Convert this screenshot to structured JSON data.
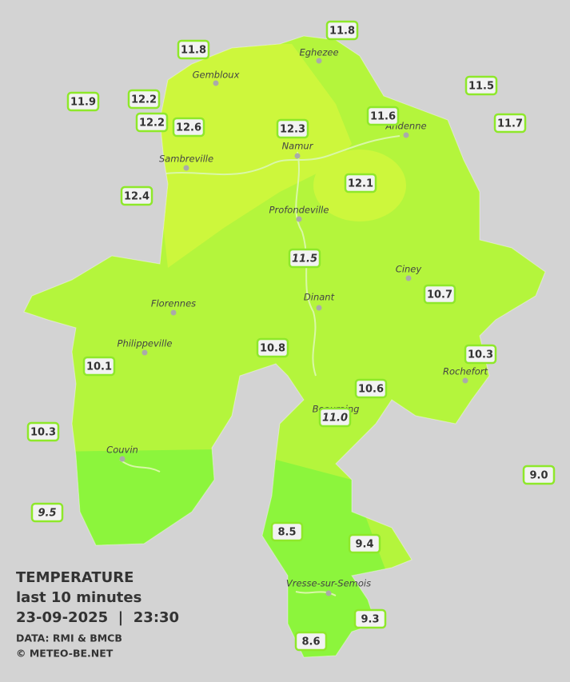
{
  "stations": [
    {
      "label": "11.8"
    },
    {
      "label": "11.8"
    },
    {
      "label": "11.5"
    },
    {
      "label": "11.9"
    },
    {
      "label": "12.2"
    },
    {
      "label": "12.2"
    },
    {
      "label": "12.6"
    },
    {
      "label": "12.3"
    },
    {
      "label": "11.6"
    },
    {
      "label": "11.7"
    },
    {
      "label": "12.1"
    },
    {
      "label": "12.4"
    },
    {
      "label": "11.5"
    },
    {
      "label": "10.7"
    },
    {
      "label": "10.8"
    },
    {
      "label": "10.3"
    },
    {
      "label": "10.1"
    },
    {
      "label": "10.6"
    },
    {
      "label": "11.0"
    },
    {
      "label": "10.3"
    },
    {
      "label": "9.0"
    },
    {
      "label": "9.5"
    },
    {
      "label": "8.5"
    },
    {
      "label": "9.4"
    },
    {
      "label": "9.3"
    },
    {
      "label": "8.6"
    }
  ],
  "cities": [
    {
      "name": "Eghezee"
    },
    {
      "name": "Gembloux"
    },
    {
      "name": "Andenne"
    },
    {
      "name": "Namur"
    },
    {
      "name": "Sambreville"
    },
    {
      "name": "Profondeville"
    },
    {
      "name": "Ciney"
    },
    {
      "name": "Dinant"
    },
    {
      "name": "Florennes"
    },
    {
      "name": "Philippeville"
    },
    {
      "name": "Rochefort"
    },
    {
      "name": "Beauraing"
    },
    {
      "name": "Couvin"
    },
    {
      "name": "Vresse-sur-Semois"
    }
  ],
  "legend": {
    "title": "TEMPERATURE",
    "subtitle": "last 10 minutes",
    "timestamp": "23-09-2025  |  23:30",
    "source": "DATA: RMI & BMCB",
    "credit": "© METEO-BE.NET"
  }
}
